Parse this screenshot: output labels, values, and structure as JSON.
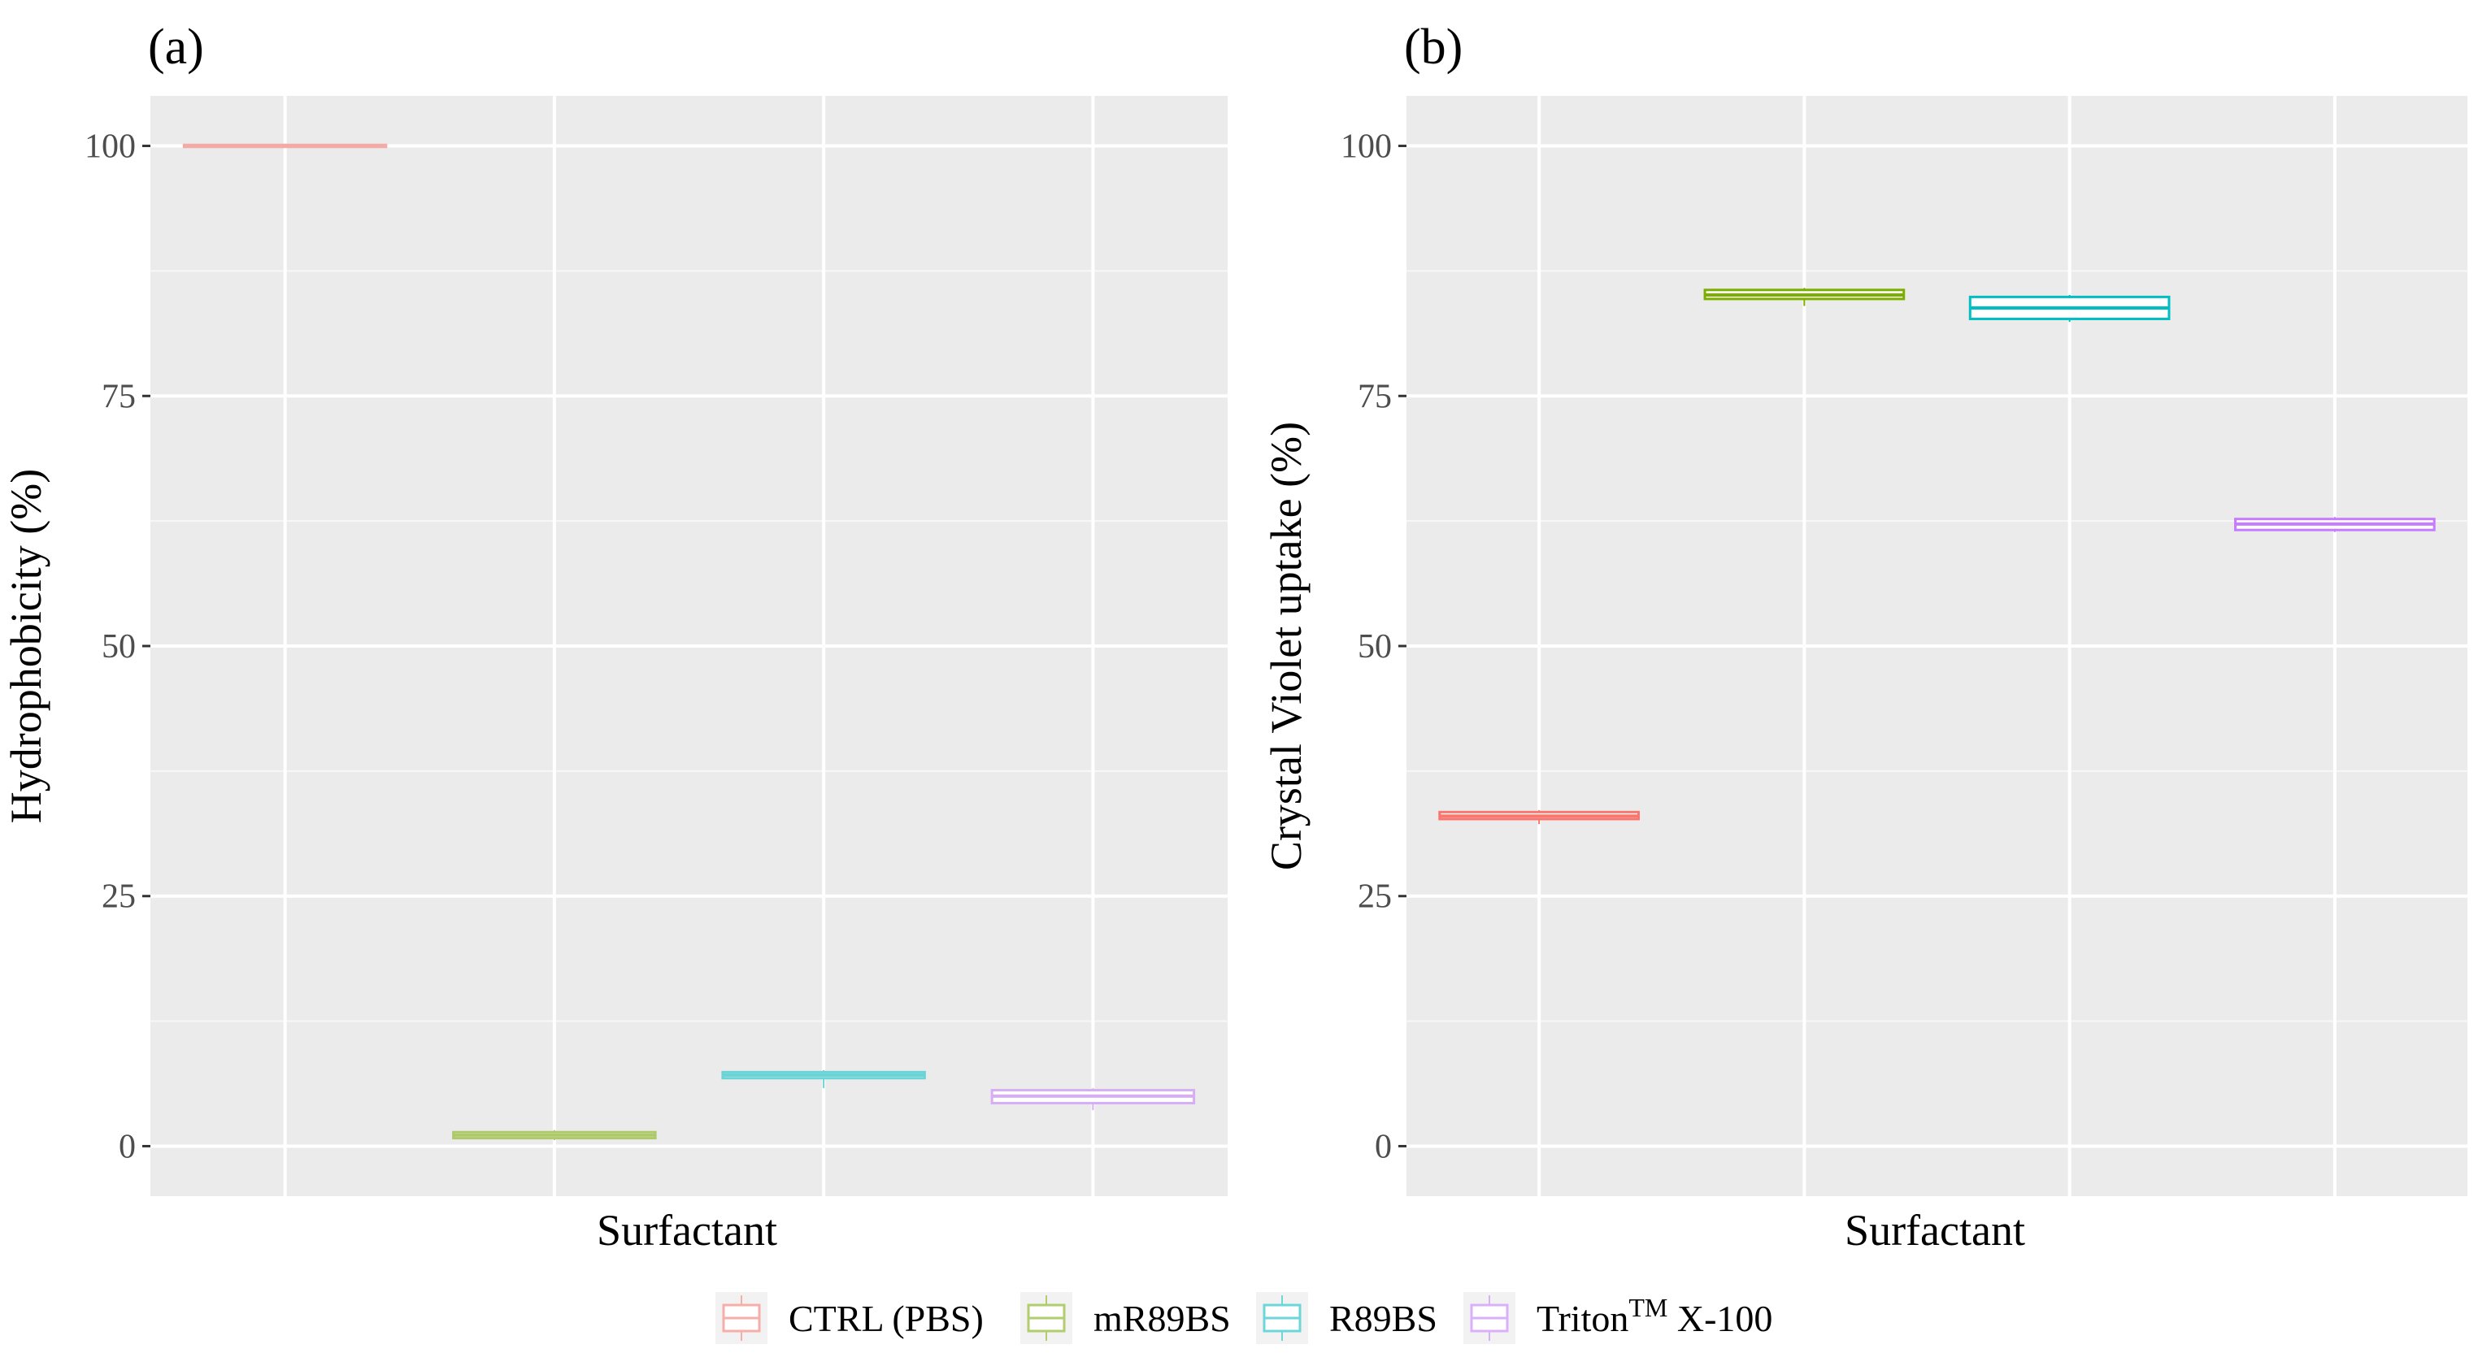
{
  "chart_data": [
    {
      "panel_label": "(a)",
      "type": "boxplot",
      "xlabel": "Surfactant",
      "ylabel": "Hydrophobicity  (%)",
      "ylim": [
        -5,
        105
      ],
      "yticks": [
        0,
        25,
        50,
        75,
        100
      ],
      "grid": true,
      "boxes": [
        {
          "series": "CTRL (PBS)",
          "q1": 99.9,
          "median": 100,
          "q3": 100.1,
          "whisker_low": 99.9,
          "whisker_high": 100.1
        },
        {
          "series": "mR89BS",
          "q1": 0.8,
          "median": 1.1,
          "q3": 1.4,
          "whisker_low": 0.6,
          "whisker_high": 1.6
        },
        {
          "series": "R89BS",
          "q1": 6.8,
          "median": 7.1,
          "q3": 7.4,
          "whisker_low": 5.8,
          "whisker_high": 7.6
        },
        {
          "series": "TritonTM X-100",
          "q1": 4.3,
          "median": 5.0,
          "q3": 5.6,
          "whisker_low": 3.6,
          "whisker_high": 5.8
        }
      ]
    },
    {
      "panel_label": "(b)",
      "type": "boxplot",
      "xlabel": "Surfactant",
      "ylabel": "Crystal Violet uptake (%)",
      "ylim": [
        -5,
        105
      ],
      "yticks": [
        0,
        25,
        50,
        75,
        100
      ],
      "grid": true,
      "boxes": [
        {
          "series": "CTRL (PBS)",
          "q1": 32.7,
          "median": 33.0,
          "q3": 33.4,
          "whisker_low": 32.2,
          "whisker_high": 33.6
        },
        {
          "series": "mR89BS",
          "q1": 84.7,
          "median": 85.1,
          "q3": 85.6,
          "whisker_low": 84.0,
          "whisker_high": 85.8
        },
        {
          "series": "R89BS",
          "q1": 82.7,
          "median": 83.8,
          "q3": 84.9,
          "whisker_low": 82.4,
          "whisker_high": 85.1
        },
        {
          "series": "TritonTM X-100",
          "q1": 61.6,
          "median": 62.2,
          "q3": 62.7,
          "whisker_low": 61.4,
          "whisker_high": 62.9
        }
      ]
    }
  ],
  "legend": {
    "placement": "bottom",
    "items": [
      {
        "name": "CTRL (PBS)",
        "text": "CTRL (PBS)",
        "sup": "",
        "after": "",
        "color": "#F8766D"
      },
      {
        "name": "mR89BS",
        "text": "mR89BS",
        "sup": "",
        "after": "",
        "color": "#7CAE00"
      },
      {
        "name": "R89BS",
        "text": "R89BS",
        "sup": "",
        "after": "",
        "color": "#00BFC4"
      },
      {
        "name": "TritonTM X-100",
        "text": "Triton",
        "sup": "TM",
        "after": " X-100",
        "color": "#C77CFF"
      }
    ]
  }
}
